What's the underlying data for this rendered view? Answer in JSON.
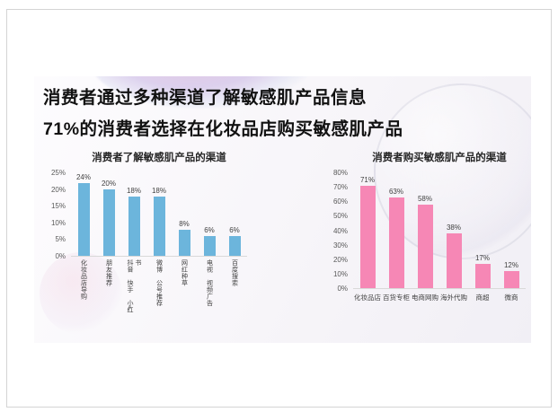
{
  "slide": {
    "title_line1": "消费者通过多种渠道了解敏感肌产品信息",
    "title_line2": "71%的消费者选择在化妆品店购买敏感肌产品"
  },
  "chart_data": [
    {
      "type": "bar",
      "title": "消费者了解敏感肌产品的渠道",
      "categories": [
        "化妆品店导购",
        "朋友推荐",
        "抖音 快手 小红书",
        "微博 公号推荐",
        "网红种草",
        "电视 视频广告",
        "百度搜索"
      ],
      "values": [
        24,
        20,
        18,
        18,
        8,
        6,
        6
      ],
      "labels": [
        "24%",
        "20%",
        "18%",
        "18%",
        "8%",
        "6%",
        "6%"
      ],
      "unit": "%",
      "ylim": [
        0,
        25
      ],
      "yticks": [
        "25%",
        "20%",
        "15%",
        "10%",
        "5%",
        "0%"
      ],
      "bar_color": "#6cb5dc",
      "grid": "off",
      "legend": "none",
      "xlabel": "",
      "ylabel": "",
      "category_label_orientation": "vertical"
    },
    {
      "type": "bar",
      "title": "消费者购买敏感肌产品的渠道",
      "categories": [
        "化妆品店",
        "百货专柜",
        "电商网购",
        "海外代购",
        "商超",
        "微商"
      ],
      "values": [
        71,
        63,
        58,
        38,
        17,
        12
      ],
      "labels": [
        "71%",
        "63%",
        "58%",
        "38%",
        "17%",
        "12%"
      ],
      "unit": "%",
      "ylim": [
        0,
        80
      ],
      "yticks": [
        "80%",
        "70%",
        "60%",
        "50%",
        "40%",
        "30%",
        "20%",
        "10%",
        "0%"
      ],
      "bar_color": "#f687b5",
      "grid": "off",
      "legend": "none",
      "xlabel": "",
      "ylabel": "",
      "category_label_orientation": "horizontal"
    }
  ]
}
